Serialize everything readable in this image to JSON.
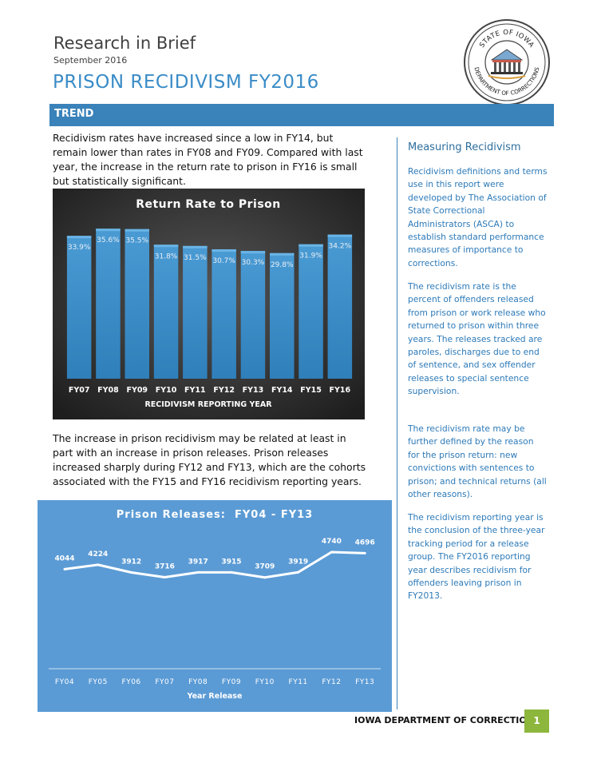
{
  "header": {
    "title": "Research in Brief",
    "date": "September 2016",
    "main_title": "PRISON RECIDIVISM FY2016"
  },
  "seal": {
    "top_text": "STATE OF IOWA",
    "bottom_text": "DEPARTMENT OF CORRECTIONS"
  },
  "section": {
    "label": "TREND"
  },
  "paragraphs": {
    "p1": "Recidivism rates have increased since a low in FY14, but remain lower than rates in FY08 and FY09. Compared with last year, the increase in the return rate to prison in FY16 is small but statistically significant.",
    "p2": "The increase in prison recidivism may be related at least in part with an increase in prison releases. Prison releases increased sharply during FY12 and FY13, which are the cohorts associated with the FY15 and FY16 recidivism reporting years."
  },
  "sidebar": {
    "title": "Measuring Recidivism",
    "p1": "Recidivism definitions and terms use in this report were developed by The Association of State Correctional Administrators (ASCA) to establish standard performance measures of importance to corrections.",
    "p2": "The recidivism rate is the percent of offenders released from prison or work release who returned to prison within three years. The releases tracked are paroles, discharges due to end of sentence, and sex offender releases to special sentence supervision.",
    "p3": "The recidivism rate may be further defined by the reason for the prison return: new convictions with sentences to prison; and technical returns (all other reasons).",
    "p4": "The recidivism reporting year is the conclusion of the three-year tracking period for a release group. The FY2016 reporting year describes recidivism for offenders leaving prison in FY2013."
  },
  "footer": {
    "org": "IOWA DEPARTMENT OF CORRECTIONS",
    "page": "1"
  },
  "chart_data": [
    {
      "type": "bar",
      "title": "Return Rate to Prison",
      "xlabel": "RECIDIVISM REPORTING YEAR",
      "ylabel": "",
      "categories": [
        "FY07",
        "FY08",
        "FY09",
        "FY10",
        "FY11",
        "FY12",
        "FY13",
        "FY14",
        "FY15",
        "FY16"
      ],
      "values": [
        33.9,
        35.6,
        35.5,
        31.8,
        31.5,
        30.7,
        30.3,
        29.8,
        31.9,
        34.2
      ],
      "value_labels": [
        "33.9%",
        "35.6%",
        "35.5%",
        "31.8%",
        "31.5%",
        "30.7%",
        "30.3%",
        "29.8%",
        "31.9%",
        "34.2%"
      ],
      "ylim": [
        0,
        40
      ],
      "grid": false,
      "legend": "none",
      "colors": {
        "background": "#2b2b2b",
        "bar": "#3a8cc7",
        "bar_top": "#5aa6da",
        "text": "#ffffff"
      }
    },
    {
      "type": "line",
      "title": "Prison Releases:  FY04 - FY13",
      "xlabel": "Year Release",
      "ylabel": "",
      "categories": [
        "FY04",
        "FY05",
        "FY06",
        "FY07",
        "FY08",
        "FY09",
        "FY10",
        "FY11",
        "FY12",
        "FY13"
      ],
      "values": [
        4044,
        4224,
        3912,
        3716,
        3917,
        3915,
        3709,
        3919,
        4740,
        4696
      ],
      "value_labels": [
        "4044",
        "4224",
        "3912",
        "3716",
        "3917",
        "3915",
        "3709",
        "3919",
        "4740",
        "4696"
      ],
      "ylim": [
        0,
        6200
      ],
      "grid": false,
      "legend": "none",
      "colors": {
        "background": "#5b9bd5",
        "line": "#ffffff",
        "text": "#ffffff"
      }
    }
  ]
}
